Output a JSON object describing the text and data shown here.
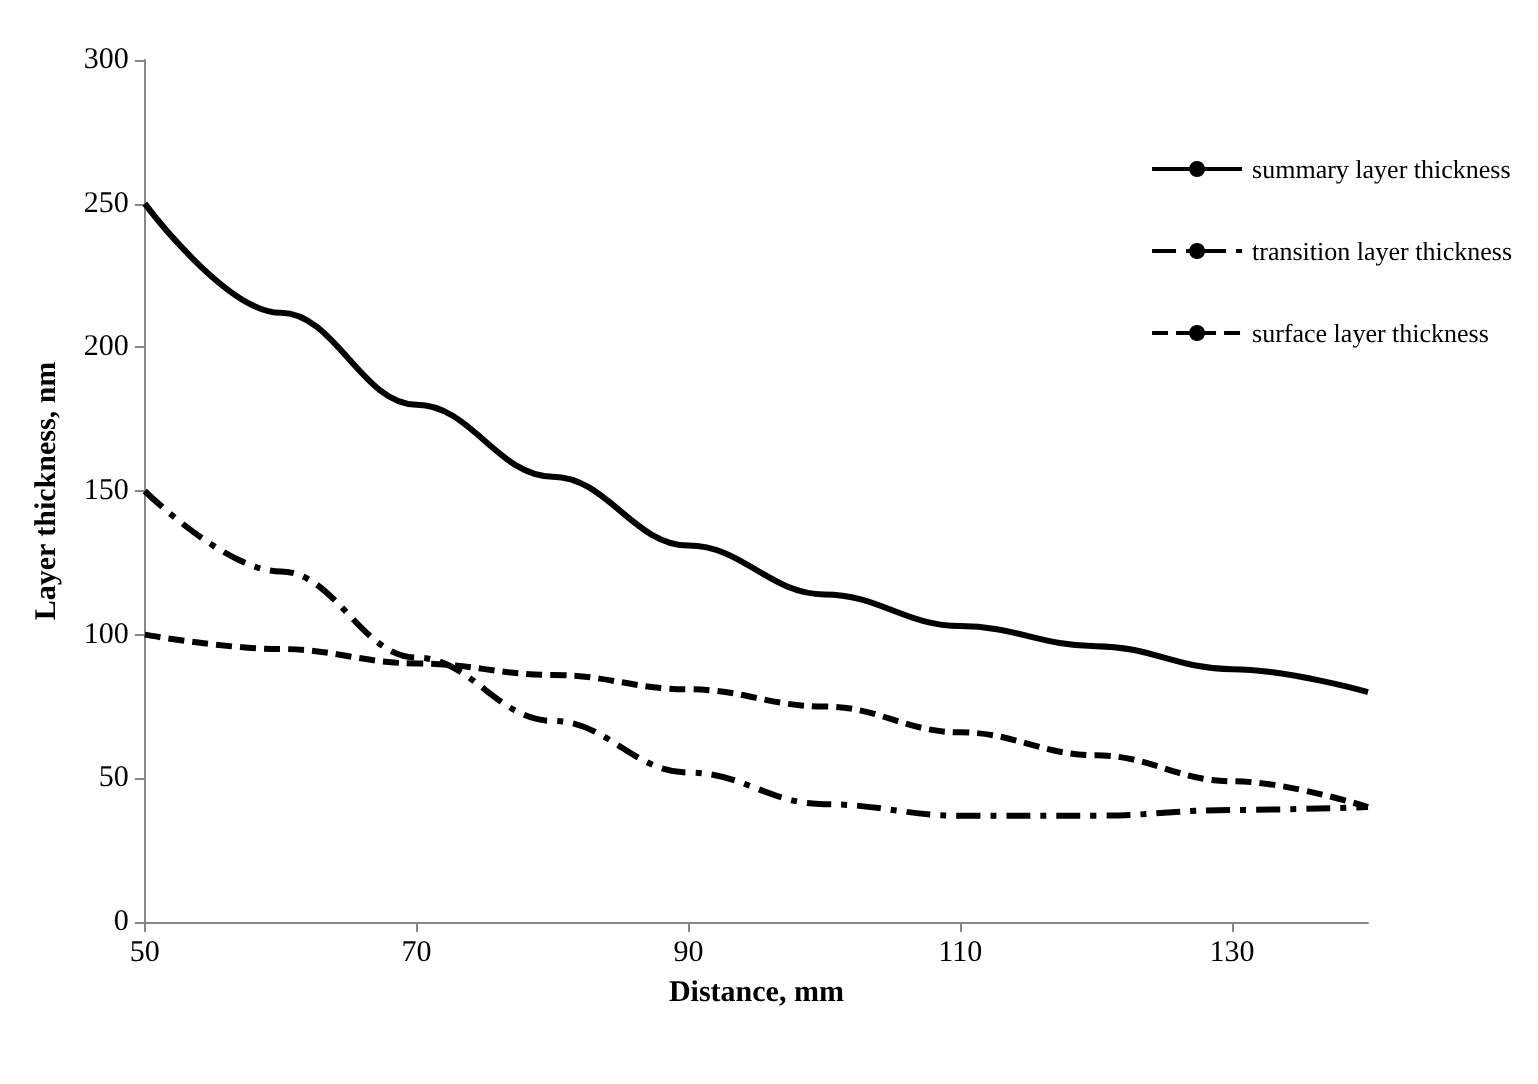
{
  "chart_data": {
    "type": "line",
    "xlabel": "Distance, mm",
    "ylabel": "Layer thickness, nm",
    "x": [
      50,
      60,
      70,
      80,
      90,
      100,
      110,
      120,
      130,
      140
    ],
    "xlim": [
      50,
      140
    ],
    "xticks": [
      50,
      70,
      90,
      110,
      130
    ],
    "ylim": [
      0,
      300
    ],
    "yticks": [
      0,
      50,
      100,
      150,
      200,
      250,
      300
    ],
    "grid": false,
    "legend": "top right",
    "marker": "none",
    "series": [
      {
        "name": "summary layer thickness",
        "color": "#000000",
        "line_style": "solid",
        "values": [
          250,
          212,
          180,
          155,
          131,
          114,
          103,
          96,
          88,
          80
        ]
      },
      {
        "name": "transition layer thickness",
        "color": "#000000",
        "line_style": "dashdot",
        "values": [
          150,
          122,
          92,
          70,
          52,
          41,
          37,
          37,
          39,
          40
        ]
      },
      {
        "name": "surface layer thickness",
        "color": "#000000",
        "line_style": "dashed",
        "values": [
          100,
          95,
          90,
          86,
          81,
          75,
          66,
          58,
          49,
          40
        ]
      }
    ]
  }
}
